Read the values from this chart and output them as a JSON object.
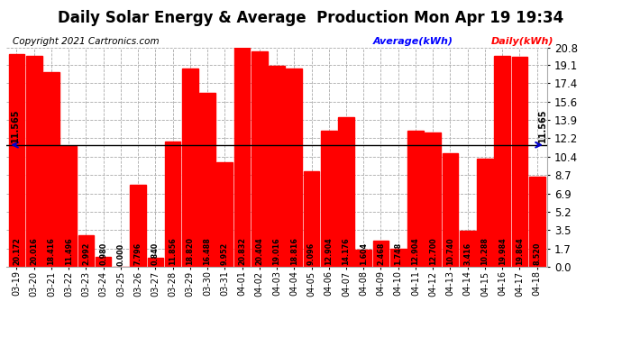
{
  "title": "Daily Solar Energy & Average  Production Mon Apr 19 19:34",
  "copyright": "Copyright 2021 Cartronics.com",
  "legend_avg": "Average(kWh)",
  "legend_daily": "Daily(kWh)",
  "categories": [
    "03-19",
    "03-20",
    "03-21",
    "03-22",
    "03-23",
    "03-24",
    "03-25",
    "03-26",
    "03-27",
    "03-28",
    "03-29",
    "03-30",
    "03-31",
    "04-01",
    "04-02",
    "04-03",
    "04-04",
    "04-05",
    "04-06",
    "04-07",
    "04-08",
    "04-09",
    "04-10",
    "04-11",
    "04-12",
    "04-13",
    "04-14",
    "04-15",
    "04-16",
    "04-17",
    "04-18"
  ],
  "values": [
    20.172,
    20.016,
    18.416,
    11.496,
    2.992,
    0.98,
    0.0,
    7.796,
    0.84,
    11.856,
    18.82,
    16.488,
    9.952,
    20.832,
    20.404,
    19.016,
    18.816,
    9.096,
    12.904,
    14.176,
    1.604,
    2.468,
    1.748,
    12.904,
    12.7,
    10.74,
    3.416,
    10.288,
    19.984,
    19.864,
    8.52
  ],
  "average": 11.565,
  "bar_color": "#ff0000",
  "average_line_color": "#000000",
  "arrow_color": "#0000cc",
  "yticks": [
    0.0,
    1.7,
    3.5,
    5.2,
    6.9,
    8.7,
    10.4,
    12.2,
    13.9,
    15.6,
    17.4,
    19.1,
    20.8
  ],
  "ylim": [
    0.0,
    20.8
  ],
  "background_color": "#ffffff",
  "grid_color": "#aaaaaa",
  "title_fontsize": 12,
  "copyright_fontsize": 7.5,
  "label_fontsize": 5.8,
  "tick_fontsize": 8.5,
  "xtick_fontsize": 7,
  "avg_label": "11.565",
  "avg_label_fontsize": 7
}
